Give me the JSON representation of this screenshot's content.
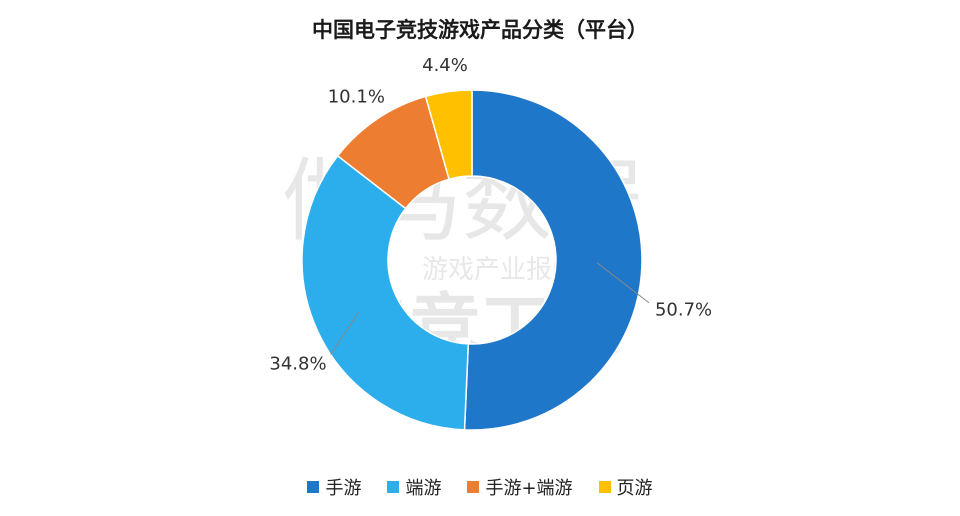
{
  "chart_data": {
    "type": "pie",
    "title": "中国电子竞技游戏产品分类（平台）",
    "categories": [
      "手游",
      "端游",
      "手游+端游",
      "页游"
    ],
    "values": [
      50.7,
      34.8,
      10.1,
      4.4
    ],
    "labels": [
      "50.7%",
      "34.8%",
      "10.1%",
      "4.4%"
    ],
    "colors": [
      "#1F77C9",
      "#2BAEEB",
      "#ED7D31",
      "#FFC000"
    ],
    "donut": true,
    "legend_position": "bottom"
  },
  "watermark": {
    "brand": "伽马数据",
    "subtitle": "游戏产业报告",
    "report": "电竞工委"
  }
}
